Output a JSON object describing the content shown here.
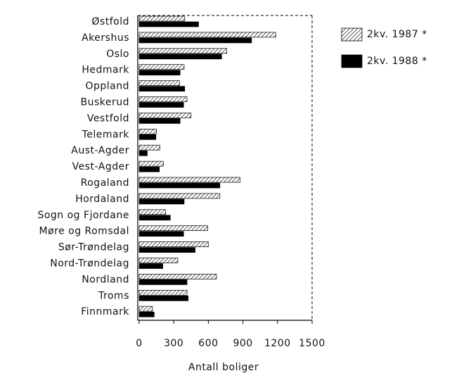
{
  "chart_data": {
    "type": "barh",
    "xlabel": "Antall boliger",
    "categories": [
      "Østfold",
      "Akershus",
      "Oslo",
      "Hedmark",
      "Oppland",
      "Buskerud",
      "Vestfold",
      "Telemark",
      "Aust-Agder",
      "Vest-Agder",
      "Rogaland",
      "Hordaland",
      "Sogn og Fjordane",
      "Møre og Romsdal",
      "Sør-Trøndelag",
      "Nord-Trøndelag",
      "Nordland",
      "Troms",
      "Finnmark"
    ],
    "series": [
      {
        "name": "2kv. 1987 *",
        "color": "#000000",
        "pattern": "hatch",
        "values": [
          395,
          1185,
          760,
          390,
          350,
          415,
          450,
          150,
          180,
          210,
          875,
          700,
          230,
          595,
          600,
          335,
          670,
          415,
          115
        ]
      },
      {
        "name": "2kv. 1988 *",
        "color": "#000000",
        "pattern": "solid",
        "values": [
          515,
          975,
          715,
          355,
          395,
          385,
          355,
          145,
          70,
          175,
          700,
          390,
          270,
          385,
          485,
          205,
          415,
          425,
          130
        ]
      }
    ],
    "xlim": [
      0,
      1500
    ],
    "xticks": [
      0,
      300,
      600,
      900,
      1200,
      1500
    ]
  }
}
